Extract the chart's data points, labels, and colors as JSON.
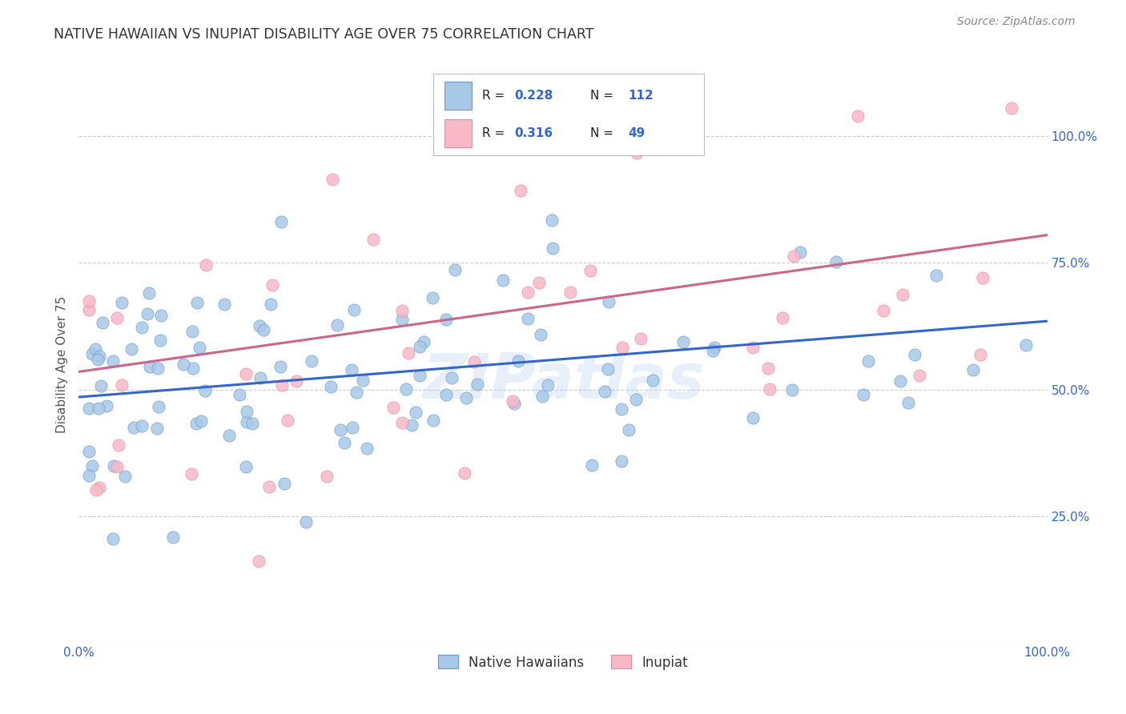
{
  "title": "NATIVE HAWAIIAN VS INUPIAT DISABILITY AGE OVER 75 CORRELATION CHART",
  "source": "Source: ZipAtlas.com",
  "ylabel": "Disability Age Over 75",
  "xlim": [
    0.0,
    1.0
  ],
  "ylim": [
    0.0,
    1.1
  ],
  "ytick_values": [
    0.25,
    0.5,
    0.75,
    1.0
  ],
  "R1": 0.228,
  "N1": 112,
  "R2": 0.316,
  "N2": 49,
  "blue_color": "#a8c8e8",
  "blue_edge_color": "#6699cc",
  "pink_color": "#f8b8c8",
  "pink_edge_color": "#e88898",
  "blue_line_color": "#3366cc",
  "pink_line_color": "#cc6688",
  "legend_text_color": "#3366cc",
  "title_color": "#333333",
  "grid_color": "#cccccc",
  "watermark": "ZIPatlas",
  "blue_line_x0": 0.0,
  "blue_line_y0": 0.485,
  "blue_line_x1": 1.0,
  "blue_line_y1": 0.635,
  "pink_line_x0": 0.0,
  "pink_line_y0": 0.535,
  "pink_line_x1": 1.0,
  "pink_line_y1": 0.805,
  "background_color": "#ffffff",
  "seed1": 12,
  "seed2": 77
}
